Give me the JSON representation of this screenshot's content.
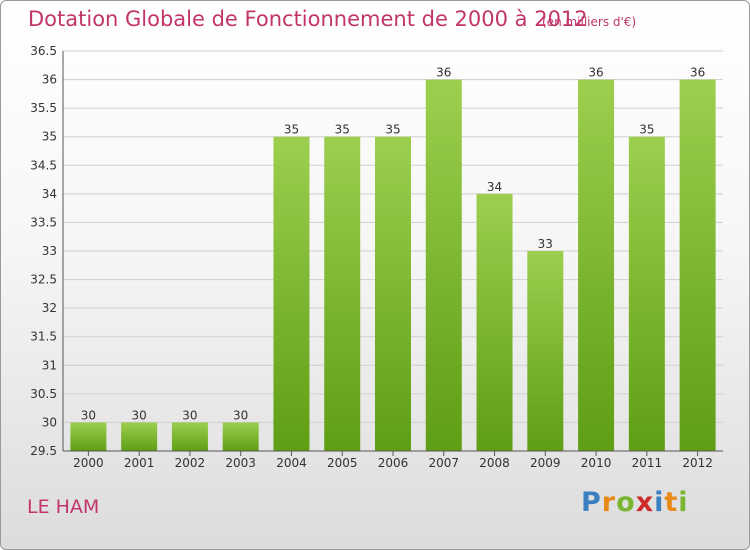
{
  "header": {
    "title": "Dotation Globale de Fonctionnement de 2000 à 2012",
    "subtitle": "(en milliers d'€)"
  },
  "footer": {
    "commune": "LE HAM",
    "logo_letters": [
      "P",
      "r",
      "o",
      "x",
      "i",
      "t",
      "i"
    ]
  },
  "colors": {
    "title": "#c1356b",
    "bar_top": "#9ccf4e",
    "bar_bottom": "#5e9e14",
    "grid": "#cfcfcf",
    "axis": "#555555"
  },
  "chart_data": {
    "type": "bar",
    "categories": [
      "2000",
      "2001",
      "2002",
      "2003",
      "2004",
      "2005",
      "2006",
      "2007",
      "2008",
      "2009",
      "2010",
      "2011",
      "2012"
    ],
    "values": [
      30,
      30,
      30,
      30,
      35,
      35,
      35,
      36,
      34,
      33,
      36,
      35,
      36
    ],
    "data_labels": [
      "30",
      "30",
      "30",
      "30",
      "35",
      "35",
      "35",
      "36",
      "34",
      "33",
      "36",
      "35",
      "36"
    ],
    "yticks": [
      "29.5",
      "30",
      "30.5",
      "31",
      "31.5",
      "32",
      "32.5",
      "33",
      "33.5",
      "34",
      "34.5",
      "35",
      "35.5",
      "36",
      "36.5"
    ],
    "ylim": [
      29.5,
      36.5
    ],
    "grid": true,
    "title": "Dotation Globale de Fonctionnement de 2000 à 2012",
    "xlabel": "",
    "ylabel": ""
  }
}
